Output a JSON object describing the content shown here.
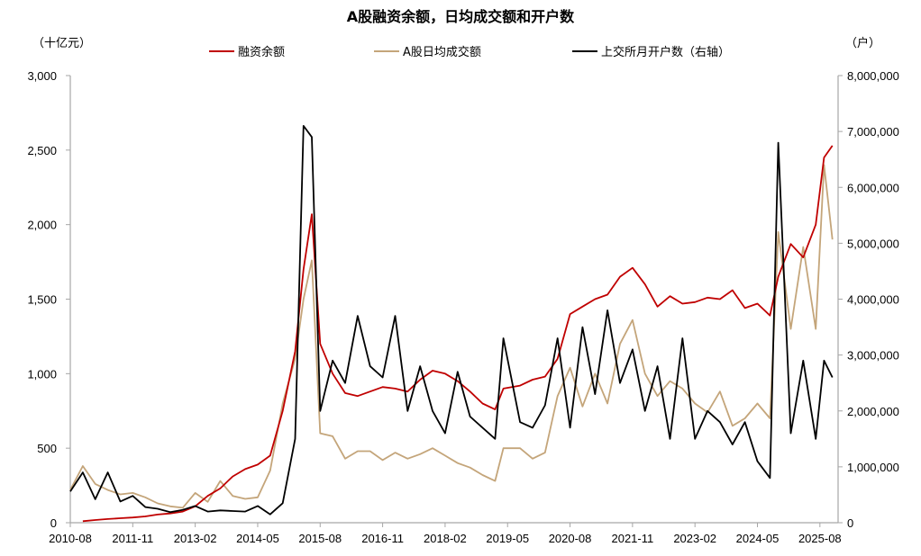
{
  "title": "A股融资余额，日均成交额和开户数",
  "left_unit": "（十亿元）",
  "right_unit": "（户）",
  "legend": [
    {
      "label": "融资余额",
      "color": "#C00000"
    },
    {
      "label": "A股日均成交额",
      "color": "#C4A57A"
    },
    {
      "label": "上交所月开户数（右轴）",
      "color": "#000000"
    }
  ],
  "chart_data": {
    "type": "line",
    "title": "A股融资余额，日均成交额和开户数",
    "xlabel": "",
    "ylabel": "（十亿元）",
    "y2label": "（户）",
    "ylim": [
      0,
      3000
    ],
    "y2lim": [
      0,
      8000000
    ],
    "yticks": [
      "0",
      "500",
      "1,000",
      "1,500",
      "2,000",
      "2,500",
      "3,000"
    ],
    "y2ticks": [
      "0",
      "1,000,000",
      "2,000,000",
      "3,000,000",
      "4,000,000",
      "5,000,000",
      "6,000,000",
      "7,000,000",
      "8,000,000"
    ],
    "xticks": [
      "2010-08",
      "2011-11",
      "2013-02",
      "2014-05",
      "2015-08",
      "2016-11",
      "2018-02",
      "2019-05",
      "2020-08",
      "2021-11",
      "2023-02",
      "2024-05",
      "2025-08"
    ],
    "grid": false,
    "legend_position": "top",
    "x": [
      "2010-08",
      "2010-11",
      "2011-02",
      "2011-05",
      "2011-08",
      "2011-11",
      "2012-02",
      "2012-05",
      "2012-08",
      "2012-11",
      "2013-02",
      "2013-05",
      "2013-08",
      "2013-11",
      "2014-02",
      "2014-05",
      "2014-08",
      "2014-11",
      "2015-02",
      "2015-04",
      "2015-06",
      "2015-08",
      "2015-11",
      "2016-02",
      "2016-05",
      "2016-08",
      "2016-11",
      "2017-02",
      "2017-05",
      "2017-08",
      "2017-11",
      "2018-02",
      "2018-05",
      "2018-08",
      "2018-11",
      "2019-02",
      "2019-04",
      "2019-08",
      "2019-11",
      "2020-02",
      "2020-05",
      "2020-08",
      "2020-11",
      "2021-02",
      "2021-05",
      "2021-08",
      "2021-11",
      "2022-02",
      "2022-05",
      "2022-08",
      "2022-11",
      "2023-02",
      "2023-05",
      "2023-08",
      "2023-11",
      "2024-02",
      "2024-05",
      "2024-08",
      "2024-10",
      "2025-01",
      "2025-04",
      "2025-07",
      "2025-09",
      "2025-11"
    ],
    "series": [
      {
        "name": "融资余额",
        "axis": "left",
        "color": "#C00000",
        "values": [
          null,
          10,
          18,
          25,
          30,
          35,
          42,
          55,
          62,
          75,
          110,
          180,
          230,
          310,
          360,
          390,
          450,
          750,
          1150,
          1700,
          2070,
          1200,
          1000,
          870,
          850,
          880,
          910,
          900,
          880,
          960,
          1020,
          1000,
          950,
          880,
          800,
          760,
          900,
          920,
          960,
          980,
          1100,
          1400,
          1450,
          1500,
          1530,
          1650,
          1710,
          1600,
          1450,
          1520,
          1470,
          1480,
          1510,
          1500,
          1560,
          1440,
          1470,
          1390,
          1650,
          1870,
          1780,
          2000,
          2450,
          2530
        ]
      },
      {
        "name": "A股日均成交额",
        "axis": "left",
        "color": "#C4A57A",
        "values": [
          220,
          380,
          260,
          220,
          190,
          200,
          170,
          130,
          110,
          100,
          200,
          140,
          280,
          180,
          160,
          170,
          350,
          800,
          1100,
          1500,
          1760,
          600,
          580,
          430,
          480,
          480,
          420,
          470,
          430,
          460,
          500,
          450,
          400,
          370,
          320,
          280,
          500,
          500,
          430,
          470,
          850,
          1040,
          780,
          1000,
          800,
          1200,
          1360,
          1000,
          850,
          950,
          900,
          800,
          740,
          880,
          650,
          700,
          800,
          700,
          1950,
          1300,
          1850,
          1300,
          2400,
          1900
        ]
      },
      {
        "name": "上交所月开户数（右轴）",
        "axis": "right",
        "color": "#000000",
        "values": [
          560000,
          900000,
          420000,
          900000,
          380000,
          480000,
          280000,
          250000,
          190000,
          230000,
          300000,
          200000,
          220000,
          210000,
          200000,
          300000,
          150000,
          350000,
          1500000,
          7100000,
          6900000,
          2000000,
          2900000,
          2500000,
          3700000,
          2800000,
          2600000,
          3700000,
          2000000,
          2800000,
          2000000,
          1600000,
          2700000,
          1900000,
          1700000,
          1500000,
          3300000,
          1800000,
          1700000,
          2100000,
          3300000,
          1700000,
          3500000,
          2300000,
          3800000,
          2500000,
          3100000,
          2000000,
          2800000,
          1500000,
          3300000,
          1500000,
          2000000,
          1800000,
          1400000,
          1800000,
          1100000,
          800000,
          6800000,
          1600000,
          2900000,
          1500000,
          2900000,
          2600000
        ]
      }
    ]
  }
}
